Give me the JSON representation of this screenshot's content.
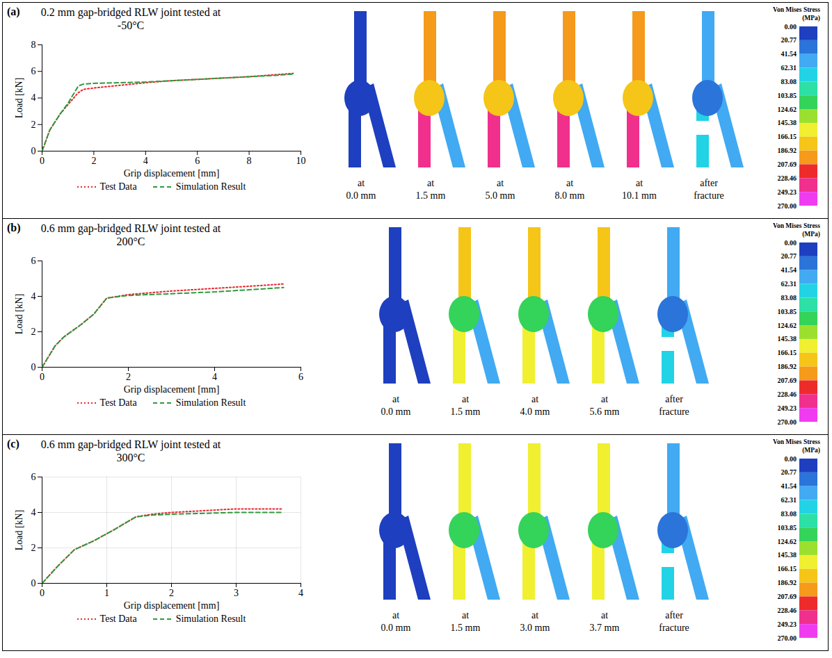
{
  "chart_data": [
    {
      "type": "line",
      "panel": "(a)",
      "title": "0.2 mm gap-bridged RLW joint tested at -50°C",
      "x_label": "Grip displacement [mm]",
      "y_label": "Load [kN]",
      "x": [
        0,
        0.3,
        0.7,
        1.0,
        1.4,
        1.6,
        2,
        3,
        4,
        5,
        6,
        7,
        8,
        9,
        9.7
      ],
      "series": [
        {
          "name": "Test Data",
          "color": "#e8262b",
          "line_style": "dotted",
          "values": [
            0,
            1.6,
            2.8,
            3.5,
            4.4,
            4.65,
            4.75,
            4.95,
            5.15,
            5.3,
            5.4,
            5.5,
            5.6,
            5.75,
            5.85
          ]
        },
        {
          "name": "Simulation Result",
          "color": "#2e9a3e",
          "line_style": "dashed",
          "values": [
            0,
            1.6,
            2.8,
            3.6,
            4.9,
            5.05,
            5.1,
            5.15,
            5.2,
            5.3,
            5.4,
            5.5,
            5.6,
            5.7,
            5.8
          ]
        }
      ],
      "xlim": [
        0,
        10
      ],
      "xticks": [
        0,
        2,
        4,
        6,
        8,
        10
      ],
      "ylim": [
        0,
        8
      ],
      "yticks": [
        0,
        2,
        4,
        6,
        8
      ],
      "grid": false,
      "legend": "bottom",
      "snapshots": [
        "at 0.0 mm",
        "at 1.5 mm",
        "at 5.0 mm",
        "at 8.0 mm",
        "at 10.1 mm",
        "after fracture"
      ],
      "colorbar": {
        "title": "Von Mises Stress (MPa)",
        "range": [
          0,
          270
        ],
        "ticks": [
          {
            "value": 0,
            "label": "0.00"
          },
          20.77,
          41.54,
          62.31,
          83.08,
          103.85,
          124.62,
          145.38,
          166.15,
          186.92,
          207.69,
          228.46,
          249.23,
          {
            "value": 270,
            "label": "270.00"
          }
        ],
        "colors": [
          "#1e3fbf",
          "#2b74da",
          "#41aaf2",
          "#22d3e6",
          "#2de0a6",
          "#34d35a",
          "#9be02e",
          "#f0f030",
          "#f5c518",
          "#f59a1a",
          "#ee2b2b",
          "#f0308c",
          "#f03cf0"
        ]
      }
    },
    {
      "type": "line",
      "panel": "(b)",
      "title": "0.6 mm gap-bridged RLW joint tested at 200°C",
      "x_label": "Grip displacement [mm]",
      "y_label": "Load [kN]",
      "x": [
        0,
        0.3,
        0.5,
        0.9,
        1.2,
        1.5,
        2,
        3,
        4,
        5,
        5.6
      ],
      "series": [
        {
          "name": "Test Data",
          "color": "#e8262b",
          "line_style": "dotted",
          "values": [
            0,
            1.2,
            1.7,
            2.4,
            3.0,
            3.9,
            4.1,
            4.3,
            4.45,
            4.6,
            4.7
          ]
        },
        {
          "name": "Simulation Result",
          "color": "#2e9a3e",
          "line_style": "dashed",
          "values": [
            0,
            1.2,
            1.7,
            2.4,
            3.0,
            3.9,
            4.05,
            4.15,
            4.25,
            4.4,
            4.5
          ]
        }
      ],
      "xlim": [
        0,
        6
      ],
      "xticks": [
        0,
        2,
        4,
        6
      ],
      "ylim": [
        0,
        6
      ],
      "yticks": [
        0,
        2,
        4,
        6
      ],
      "grid": false,
      "legend": "bottom",
      "snapshots": [
        "at 0.0 mm",
        "at 1.5 mm",
        "at 4.0 mm",
        "at 5.6 mm",
        "after fracture"
      ],
      "colorbar": {
        "title": "Von Mises Stress (MPa)",
        "range": [
          0,
          270
        ],
        "ticks": [
          {
            "value": 0,
            "label": "0.00"
          },
          20.77,
          41.54,
          62.31,
          83.08,
          103.85,
          124.62,
          145.38,
          166.15,
          186.92,
          207.69,
          228.46,
          249.23,
          {
            "value": 270,
            "label": "270.00"
          }
        ],
        "colors": [
          "#1e3fbf",
          "#2b74da",
          "#41aaf2",
          "#22d3e6",
          "#2de0a6",
          "#34d35a",
          "#9be02e",
          "#f0f030",
          "#f5c518",
          "#f59a1a",
          "#ee2b2b",
          "#f0308c",
          "#f03cf0"
        ]
      }
    },
    {
      "type": "line",
      "panel": "(c)",
      "title": "0.6 mm gap-bridged RLW joint tested at 300°C",
      "x_label": "Grip displacement [mm]",
      "y_label": "Load [kN]",
      "x": [
        0,
        0.25,
        0.5,
        0.8,
        1.1,
        1.45,
        1.7,
        2,
        2.5,
        3,
        3.5,
        3.7
      ],
      "series": [
        {
          "name": "Test Data",
          "color": "#e8262b",
          "line_style": "dotted",
          "values": [
            0,
            1.0,
            1.9,
            2.4,
            3.0,
            3.75,
            3.9,
            4.0,
            4.1,
            4.2,
            4.2,
            4.2
          ]
        },
        {
          "name": "Simulation Result",
          "color": "#2e9a3e",
          "line_style": "dashed",
          "values": [
            0,
            1.0,
            1.9,
            2.4,
            3.0,
            3.75,
            3.85,
            3.9,
            3.95,
            4.0,
            4.0,
            4.0
          ]
        }
      ],
      "xlim": [
        0,
        4
      ],
      "xticks": [
        0,
        1,
        2,
        3,
        4
      ],
      "ylim": [
        0,
        6
      ],
      "yticks": [
        0,
        2,
        4,
        6
      ],
      "grid": true,
      "legend": "bottom",
      "snapshots": [
        "at 0.0 mm",
        "at 1.5 mm",
        "at 3.0 mm",
        "at 3.7 mm",
        "after fracture"
      ],
      "colorbar": {
        "title": "Von Mises Stress (MPa)",
        "range": [
          0,
          270
        ],
        "ticks": [
          {
            "value": 0,
            "label": "0.00"
          },
          20.77,
          41.54,
          62.31,
          83.08,
          103.85,
          124.62,
          145.38,
          166.15,
          186.92,
          207.69,
          228.46,
          249.23,
          {
            "value": 270,
            "label": "270.00"
          }
        ],
        "colors": [
          "#1e3fbf",
          "#2b74da",
          "#41aaf2",
          "#22d3e6",
          "#2de0a6",
          "#34d35a",
          "#9be02e",
          "#f0f030",
          "#f5c518",
          "#f59a1a",
          "#ee2b2b",
          "#f0308c",
          "#f03cf0"
        ]
      }
    }
  ]
}
